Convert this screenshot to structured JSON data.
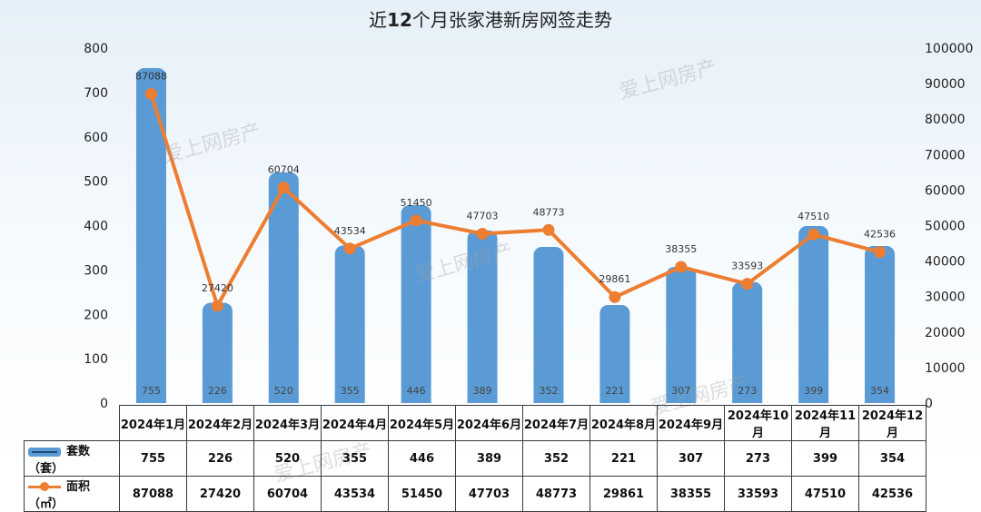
{
  "chart_data": {
    "type": "bar+line",
    "title_pre": "近",
    "title_num": "12",
    "title_post": "个月张家港新房网签走势",
    "categories": [
      "2024年1月",
      "2024年2月",
      "2024年3月",
      "2024年4月",
      "2024年5月",
      "2024年6月",
      "2024年7月",
      "2024年8月",
      "2024年9月",
      "2024年10月",
      "2024年11月",
      "2024年12月"
    ],
    "series": [
      {
        "name": "套数（套）",
        "type": "bar",
        "axis": "left",
        "values": [
          755,
          226,
          520,
          355,
          446,
          389,
          352,
          221,
          307,
          273,
          399,
          354
        ]
      },
      {
        "name": "面积（㎡）",
        "type": "line",
        "axis": "right",
        "values": [
          87088,
          27420,
          60704,
          43534,
          51450,
          47703,
          48773,
          29861,
          38355,
          33593,
          47510,
          42536
        ]
      }
    ],
    "y_left_ticks": [
      "0",
      "100",
      "200",
      "300",
      "400",
      "500",
      "600",
      "700",
      "800"
    ],
    "y_right_ticks": [
      "0",
      "10000",
      "20000",
      "30000",
      "40000",
      "50000",
      "60000",
      "70000",
      "80000",
      "90000",
      "100000"
    ],
    "ylim_left": [
      0,
      800
    ],
    "ylim_right": [
      0,
      100000
    ],
    "colors": {
      "bar": "#5b9bd5",
      "line": "#ed7d31"
    },
    "watermark": "爱上网房产"
  }
}
